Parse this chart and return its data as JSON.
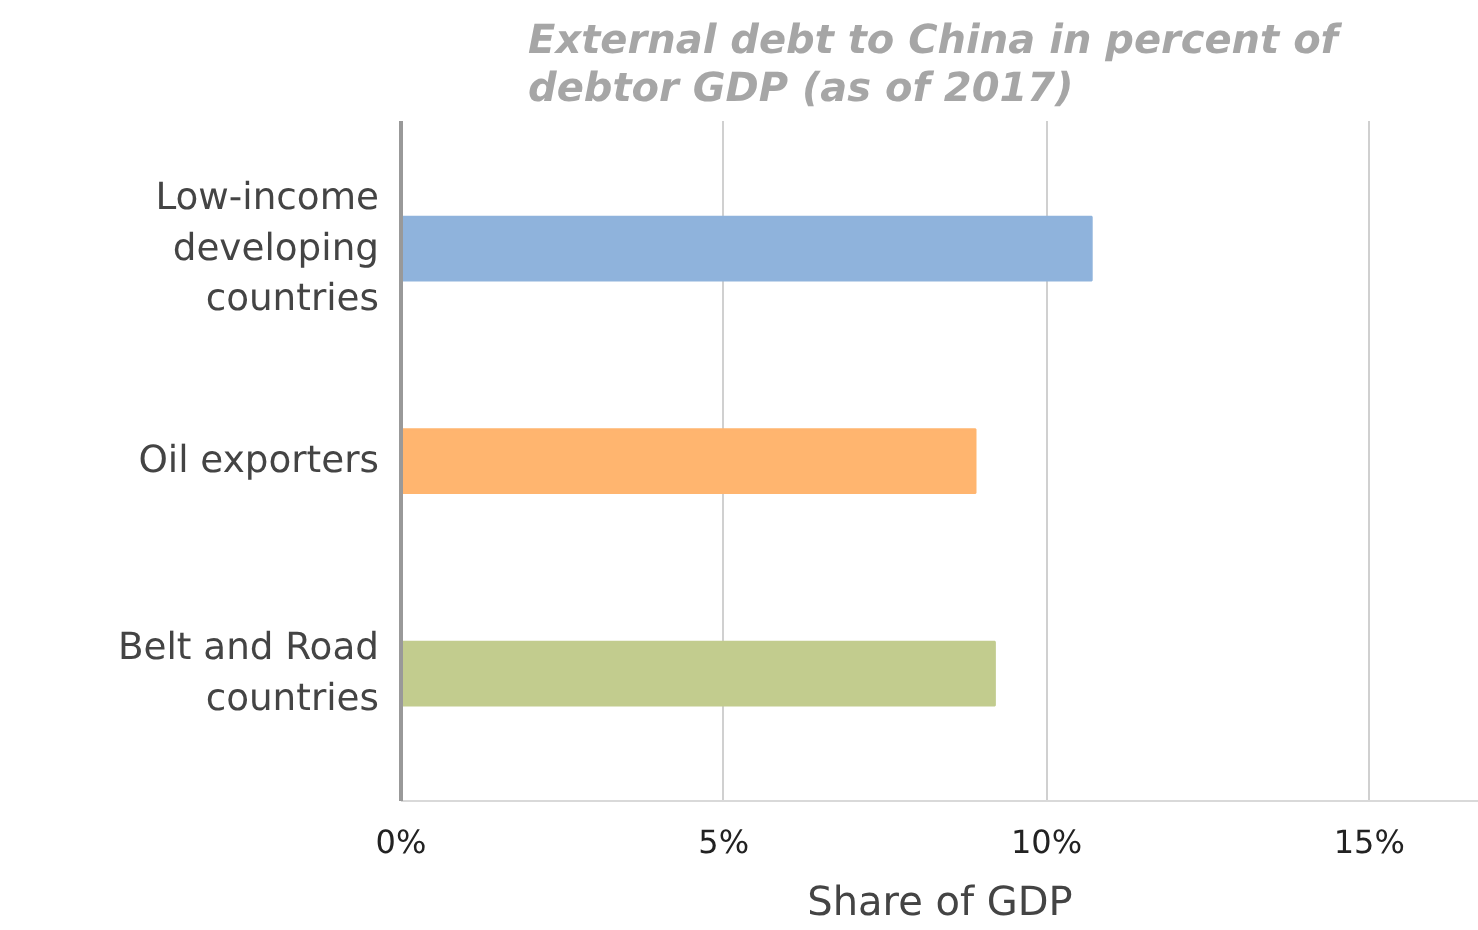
{
  "chart_data": {
    "type": "bar",
    "orientation": "horizontal",
    "title": "External debt  to China in percent of debtor GDP (as of 2017)",
    "xlabel": "Share of GDP",
    "categories": [
      "Low-income developing countries",
      "Oil exporters",
      "Belt and Road countries"
    ],
    "values": [
      10.7,
      8.9,
      9.2
    ],
    "colors": [
      "#8fb3dc",
      "#ffb56f",
      "#c2cc8e"
    ],
    "xlim": [
      0,
      16.7
    ],
    "xticks": [
      {
        "value": 0,
        "label": "0%"
      },
      {
        "value": 5,
        "label": "5%"
      },
      {
        "value": 10,
        "label": "10%"
      },
      {
        "value": 15,
        "label": "15%"
      }
    ],
    "grid": "x"
  }
}
